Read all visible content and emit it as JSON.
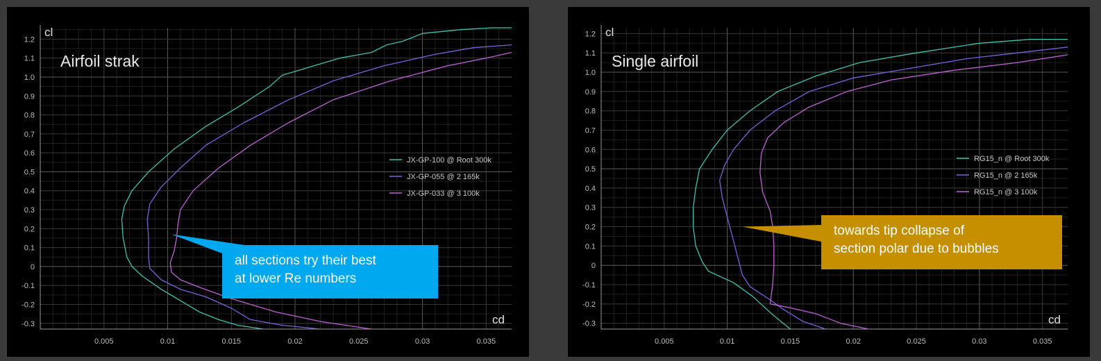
{
  "panels": [
    {
      "title": "Airfoil strak",
      "xlabel": "cd",
      "ylabel": "cl",
      "callout": {
        "lines": [
          "all sections try their best",
          "at lower Re numbers"
        ],
        "color": "#00a8f0",
        "point": [
          0.0103,
          0.17
        ]
      }
    },
    {
      "title": "Single airfoil",
      "xlabel": "cd",
      "ylabel": "cl",
      "callout": {
        "lines": [
          "towards tip collapse of",
          "section polar due to bubbles"
        ],
        "color": "#c58f00",
        "point": [
          0.0112,
          0.2
        ]
      }
    }
  ],
  "chart_data": [
    {
      "type": "line",
      "title": "Airfoil strak",
      "xlabel": "cd",
      "ylabel": "cl",
      "xlim": [
        0.0,
        0.037
      ],
      "ylim": [
        -0.33,
        1.26
      ],
      "xticks": [
        0.005,
        0.01,
        0.015,
        0.02,
        0.025,
        0.03,
        0.035
      ],
      "xtick_labels": [
        "0.005",
        "0.01",
        "0.015",
        "0.02",
        "0.025",
        "0.03",
        "0.035"
      ],
      "yticks": [
        -0.3,
        -0.2,
        -0.1,
        0,
        0.1,
        0.2,
        0.3,
        0.4,
        0.5,
        0.6,
        0.7,
        0.8,
        0.9,
        1.0,
        1.1,
        1.2
      ],
      "ytick_labels": [
        "-0.3",
        "-0.2",
        "-0.1",
        "0",
        "0.1",
        "0.2",
        "0.3",
        "0.4",
        "0.5",
        "0.6",
        "0.7",
        "0.8",
        "0.9",
        "1.0",
        "1.1",
        "1.2"
      ],
      "grid": true,
      "legend_position": "right",
      "series": [
        {
          "name": "JX-GP-100 @ Root 300k",
          "color": "#3ec3b0",
          "points": [
            [
              0.0175,
              -0.33
            ],
            [
              0.0155,
              -0.31
            ],
            [
              0.014,
              -0.28
            ],
            [
              0.0125,
              -0.24
            ],
            [
              0.011,
              -0.18
            ],
            [
              0.0095,
              -0.12
            ],
            [
              0.008,
              -0.05
            ],
            [
              0.0072,
              0.0
            ],
            [
              0.0068,
              0.05
            ],
            [
              0.0065,
              0.15
            ],
            [
              0.0064,
              0.25
            ],
            [
              0.0066,
              0.32
            ],
            [
              0.0072,
              0.4
            ],
            [
              0.0085,
              0.5
            ],
            [
              0.0105,
              0.62
            ],
            [
              0.013,
              0.74
            ],
            [
              0.0155,
              0.84
            ],
            [
              0.018,
              0.95
            ],
            [
              0.019,
              1.01
            ],
            [
              0.0205,
              1.04
            ],
            [
              0.0215,
              1.06
            ],
            [
              0.0235,
              1.1
            ],
            [
              0.026,
              1.13
            ],
            [
              0.0272,
              1.17
            ],
            [
              0.0285,
              1.19
            ],
            [
              0.03,
              1.23
            ],
            [
              0.033,
              1.25
            ],
            [
              0.0355,
              1.26
            ],
            [
              0.037,
              1.26
            ]
          ]
        },
        {
          "name": "JX-GP-055 @ 2 165k",
          "color": "#7a62dc",
          "points": [
            [
              0.022,
              -0.33
            ],
            [
              0.019,
              -0.31
            ],
            [
              0.0165,
              -0.28
            ],
            [
              0.015,
              -0.22
            ],
            [
              0.013,
              -0.16
            ],
            [
              0.011,
              -0.12
            ],
            [
              0.0095,
              -0.07
            ],
            [
              0.0086,
              -0.01
            ],
            [
              0.0085,
              0.05
            ],
            [
              0.0085,
              0.15
            ],
            [
              0.0084,
              0.25
            ],
            [
              0.0086,
              0.33
            ],
            [
              0.0095,
              0.42
            ],
            [
              0.011,
              0.52
            ],
            [
              0.013,
              0.64
            ],
            [
              0.016,
              0.76
            ],
            [
              0.0195,
              0.88
            ],
            [
              0.023,
              0.98
            ],
            [
              0.027,
              1.06
            ],
            [
              0.031,
              1.12
            ],
            [
              0.034,
              1.155
            ],
            [
              0.037,
              1.17
            ]
          ]
        },
        {
          "name": "JX-GP-033 @ 3 100k",
          "color": "#c060d8",
          "points": [
            [
              0.026,
              -0.33
            ],
            [
              0.022,
              -0.29
            ],
            [
              0.0185,
              -0.24
            ],
            [
              0.015,
              -0.17
            ],
            [
              0.0125,
              -0.11
            ],
            [
              0.011,
              -0.07
            ],
            [
              0.0103,
              -0.03
            ],
            [
              0.0102,
              0.02
            ],
            [
              0.0105,
              0.08
            ],
            [
              0.0107,
              0.15
            ],
            [
              0.0108,
              0.22
            ],
            [
              0.011,
              0.3
            ],
            [
              0.012,
              0.4
            ],
            [
              0.014,
              0.52
            ],
            [
              0.0165,
              0.64
            ],
            [
              0.0195,
              0.76
            ],
            [
              0.023,
              0.88
            ],
            [
              0.0275,
              0.98
            ],
            [
              0.032,
              1.06
            ],
            [
              0.035,
              1.1
            ],
            [
              0.037,
              1.13
            ]
          ]
        }
      ]
    },
    {
      "type": "line",
      "title": "Single airfoil",
      "xlabel": "cd",
      "ylabel": "cl",
      "xlim": [
        0.0,
        0.037
      ],
      "ylim": [
        -0.33,
        1.23
      ],
      "xticks": [
        0.005,
        0.01,
        0.015,
        0.02,
        0.025,
        0.03,
        0.035
      ],
      "xtick_labels": [
        "0.005",
        "0.01",
        "0.015",
        "0.02",
        "0.025",
        "0.03",
        "0.035"
      ],
      "yticks": [
        -0.3,
        -0.2,
        -0.1,
        0,
        0.1,
        0.2,
        0.3,
        0.4,
        0.5,
        0.6,
        0.7,
        0.8,
        0.9,
        1.0,
        1.1,
        1.2
      ],
      "ytick_labels": [
        "-0.3",
        "-0.2",
        "-0.1",
        "0",
        "0.1",
        "0.2",
        "0.3",
        "0.4",
        "0.5",
        "0.6",
        "0.7",
        "0.8",
        "0.9",
        "1.0",
        "1.1",
        "1.2"
      ],
      "grid": true,
      "legend_position": "right",
      "series": [
        {
          "name": "RG15_n @ Root 300k",
          "color": "#3ec3b0",
          "points": [
            [
              0.015,
              -0.33
            ],
            [
              0.0135,
              -0.25
            ],
            [
              0.012,
              -0.16
            ],
            [
              0.0105,
              -0.09
            ],
            [
              0.0085,
              -0.03
            ],
            [
              0.008,
              0.02
            ],
            [
              0.0075,
              0.1
            ],
            [
              0.0073,
              0.2
            ],
            [
              0.0073,
              0.3
            ],
            [
              0.0075,
              0.4
            ],
            [
              0.0078,
              0.5
            ],
            [
              0.0088,
              0.6
            ],
            [
              0.01,
              0.7
            ],
            [
              0.0118,
              0.8
            ],
            [
              0.014,
              0.9
            ],
            [
              0.017,
              0.98
            ],
            [
              0.0205,
              1.05
            ],
            [
              0.025,
              1.1
            ],
            [
              0.03,
              1.15
            ],
            [
              0.034,
              1.17
            ],
            [
              0.037,
              1.17
            ]
          ]
        },
        {
          "name": "RG15_n @ 2 165k",
          "color": "#7a62dc",
          "points": [
            [
              0.0178,
              -0.33
            ],
            [
              0.016,
              -0.29
            ],
            [
              0.0145,
              -0.23
            ],
            [
              0.0132,
              -0.17
            ],
            [
              0.0118,
              -0.11
            ],
            [
              0.0112,
              -0.05
            ],
            [
              0.0108,
              0.05
            ],
            [
              0.0104,
              0.15
            ],
            [
              0.01,
              0.25
            ],
            [
              0.0096,
              0.35
            ],
            [
              0.0094,
              0.44
            ],
            [
              0.0098,
              0.52
            ],
            [
              0.0105,
              0.6
            ],
            [
              0.0118,
              0.7
            ],
            [
              0.0138,
              0.8
            ],
            [
              0.0165,
              0.9
            ],
            [
              0.02,
              0.97
            ],
            [
              0.0245,
              1.02
            ],
            [
              0.029,
              1.07
            ],
            [
              0.033,
              1.1
            ],
            [
              0.037,
              1.13
            ]
          ]
        },
        {
          "name": "RG15_n @ 3 100k",
          "color": "#c060d8",
          "points": [
            [
              0.0212,
              -0.33
            ],
            [
              0.019,
              -0.3
            ],
            [
              0.017,
              -0.25
            ],
            [
              0.015,
              -0.22
            ],
            [
              0.0134,
              -0.2
            ],
            [
              0.0136,
              -0.1
            ],
            [
              0.0137,
              0.0
            ],
            [
              0.0137,
              0.1
            ],
            [
              0.0136,
              0.2
            ],
            [
              0.0134,
              0.28
            ],
            [
              0.0128,
              0.38
            ],
            [
              0.0126,
              0.48
            ],
            [
              0.0127,
              0.58
            ],
            [
              0.0132,
              0.66
            ],
            [
              0.0145,
              0.74
            ],
            [
              0.0165,
              0.82
            ],
            [
              0.0195,
              0.9
            ],
            [
              0.023,
              0.96
            ],
            [
              0.028,
              1.01
            ],
            [
              0.033,
              1.05
            ],
            [
              0.037,
              1.09
            ]
          ]
        }
      ]
    }
  ]
}
